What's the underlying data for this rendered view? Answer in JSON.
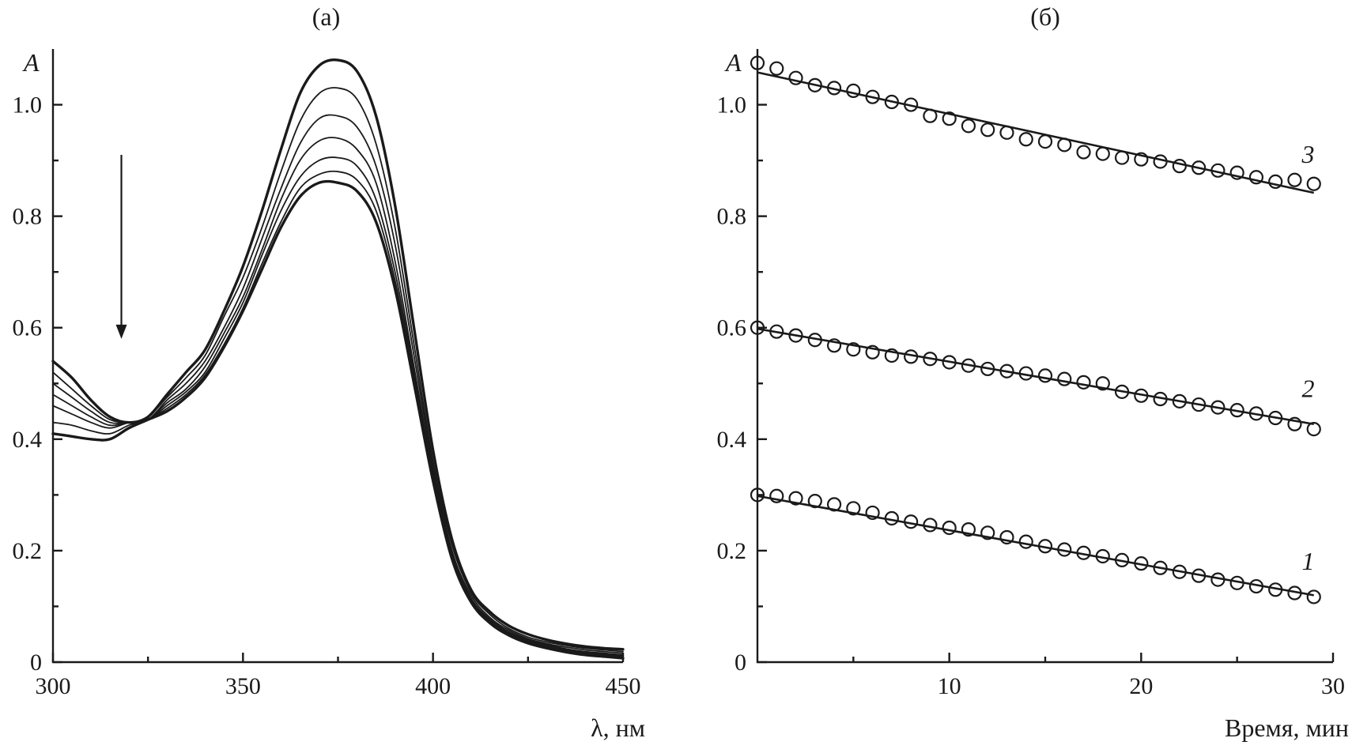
{
  "chart_data": [
    {
      "type": "line",
      "panel_label": "(a)",
      "xlabel": "λ, нм",
      "ylabel": "A",
      "xlim": [
        300,
        450
      ],
      "ylim": [
        0,
        1.1
      ],
      "x_ticks": [
        "300",
        "350",
        "400",
        "450"
      ],
      "y_ticks": [
        "0",
        "0.2",
        "0.4",
        "0.6",
        "0.8",
        "1.0"
      ],
      "x_tick_values": [
        300,
        350,
        400,
        450
      ],
      "y_tick_values": [
        0,
        0.2,
        0.4,
        0.6,
        0.8,
        1.0
      ],
      "annotation": "downward arrow at ~318 nm from 0.91 to 0.58 indicating decreasing absorbance over time",
      "x": [
        300,
        305,
        310,
        315,
        320,
        325,
        330,
        335,
        340,
        345,
        350,
        355,
        360,
        365,
        370,
        375,
        380,
        385,
        390,
        395,
        400,
        405,
        410,
        415,
        420,
        425,
        430,
        435,
        440,
        445,
        450
      ],
      "series": [
        {
          "values": [
            0.54,
            0.51,
            0.47,
            0.44,
            0.43,
            0.44,
            0.48,
            0.52,
            0.56,
            0.63,
            0.71,
            0.81,
            0.92,
            1.02,
            1.07,
            1.08,
            1.06,
            0.98,
            0.82,
            0.6,
            0.38,
            0.22,
            0.13,
            0.09,
            0.065,
            0.05,
            0.04,
            0.033,
            0.028,
            0.025,
            0.023
          ]
        },
        {
          "values": [
            0.52,
            0.49,
            0.46,
            0.435,
            0.43,
            0.44,
            0.475,
            0.51,
            0.55,
            0.62,
            0.69,
            0.78,
            0.88,
            0.97,
            1.02,
            1.03,
            1.01,
            0.93,
            0.78,
            0.57,
            0.36,
            0.21,
            0.125,
            0.085,
            0.06,
            0.045,
            0.036,
            0.03,
            0.025,
            0.022,
            0.019
          ]
        },
        {
          "values": [
            0.5,
            0.475,
            0.45,
            0.43,
            0.43,
            0.435,
            0.47,
            0.5,
            0.54,
            0.6,
            0.67,
            0.76,
            0.85,
            0.93,
            0.975,
            0.98,
            0.96,
            0.89,
            0.75,
            0.55,
            0.35,
            0.2,
            0.12,
            0.08,
            0.057,
            0.042,
            0.033,
            0.027,
            0.022,
            0.019,
            0.016
          ]
        },
        {
          "values": [
            0.48,
            0.46,
            0.44,
            0.425,
            0.43,
            0.435,
            0.465,
            0.49,
            0.53,
            0.59,
            0.655,
            0.74,
            0.83,
            0.9,
            0.935,
            0.94,
            0.92,
            0.86,
            0.72,
            0.53,
            0.34,
            0.195,
            0.115,
            0.077,
            0.054,
            0.04,
            0.031,
            0.024,
            0.019,
            0.016,
            0.013
          ]
        },
        {
          "values": [
            0.46,
            0.445,
            0.43,
            0.42,
            0.43,
            0.435,
            0.46,
            0.485,
            0.52,
            0.58,
            0.645,
            0.73,
            0.81,
            0.87,
            0.9,
            0.905,
            0.89,
            0.83,
            0.7,
            0.52,
            0.335,
            0.19,
            0.112,
            0.074,
            0.052,
            0.038,
            0.029,
            0.022,
            0.017,
            0.014,
            0.011
          ]
        },
        {
          "values": [
            0.43,
            0.425,
            0.415,
            0.41,
            0.425,
            0.435,
            0.455,
            0.48,
            0.515,
            0.57,
            0.635,
            0.715,
            0.79,
            0.85,
            0.875,
            0.88,
            0.865,
            0.81,
            0.685,
            0.51,
            0.33,
            0.187,
            0.11,
            0.072,
            0.05,
            0.036,
            0.027,
            0.02,
            0.015,
            0.012,
            0.009
          ]
        },
        {
          "values": [
            0.41,
            0.405,
            0.4,
            0.4,
            0.42,
            0.435,
            0.45,
            0.475,
            0.51,
            0.565,
            0.63,
            0.705,
            0.78,
            0.835,
            0.86,
            0.86,
            0.845,
            0.79,
            0.67,
            0.5,
            0.325,
            0.185,
            0.108,
            0.07,
            0.048,
            0.034,
            0.025,
            0.018,
            0.013,
            0.01,
            0.007
          ]
        }
      ]
    },
    {
      "type": "scatter",
      "panel_label": "(б)",
      "xlabel": "Время, мин",
      "ylabel": "A",
      "xlim": [
        0,
        30
      ],
      "ylim": [
        0,
        1.1
      ],
      "x_ticks": [
        "10",
        "20",
        "30"
      ],
      "y_ticks": [
        "0",
        "0.2",
        "0.4",
        "0.6",
        "0.8",
        "1.0"
      ],
      "x_tick_values": [
        10,
        20,
        30
      ],
      "y_tick_values": [
        0,
        0.2,
        0.4,
        0.6,
        0.8,
        1.0
      ],
      "x": [
        0,
        1,
        2,
        3,
        4,
        5,
        6,
        7,
        8,
        9,
        10,
        11,
        12,
        13,
        14,
        15,
        16,
        17,
        18,
        19,
        20,
        21,
        22,
        23,
        24,
        25,
        26,
        27,
        28,
        29
      ],
      "series": [
        {
          "name": "1",
          "values": [
            0.3,
            0.298,
            0.294,
            0.289,
            0.283,
            0.276,
            0.268,
            0.258,
            0.252,
            0.246,
            0.241,
            0.238,
            0.232,
            0.224,
            0.216,
            0.208,
            0.202,
            0.196,
            0.19,
            0.183,
            0.177,
            0.169,
            0.162,
            0.155,
            0.148,
            0.142,
            0.136,
            0.13,
            0.124,
            0.117
          ],
          "fit": [
            [
              0,
              0.298
            ],
            [
              29,
              0.12
            ]
          ],
          "label_pos": [
            28.7,
            0.18
          ]
        },
        {
          "name": "2",
          "values": [
            0.6,
            0.593,
            0.586,
            0.578,
            0.568,
            0.561,
            0.556,
            0.55,
            0.548,
            0.544,
            0.538,
            0.532,
            0.526,
            0.522,
            0.518,
            0.514,
            0.508,
            0.502,
            0.5,
            0.485,
            0.478,
            0.472,
            0.468,
            0.462,
            0.457,
            0.452,
            0.446,
            0.438,
            0.427,
            0.418
          ],
          "fit": [
            [
              0,
              0.598
            ],
            [
              29,
              0.427
            ]
          ],
          "label_pos": [
            28.7,
            0.49
          ]
        },
        {
          "name": "3",
          "values": [
            1.075,
            1.065,
            1.048,
            1.035,
            1.03,
            1.025,
            1.014,
            1.005,
            1.0,
            0.98,
            0.975,
            0.962,
            0.955,
            0.95,
            0.938,
            0.934,
            0.928,
            0.915,
            0.912,
            0.905,
            0.902,
            0.898,
            0.89,
            0.887,
            0.882,
            0.878,
            0.87,
            0.862,
            0.865,
            0.858
          ],
          "fit": [
            [
              0,
              1.058
            ],
            [
              29,
              0.842
            ]
          ],
          "label_pos": [
            28.7,
            0.91
          ]
        }
      ]
    }
  ]
}
